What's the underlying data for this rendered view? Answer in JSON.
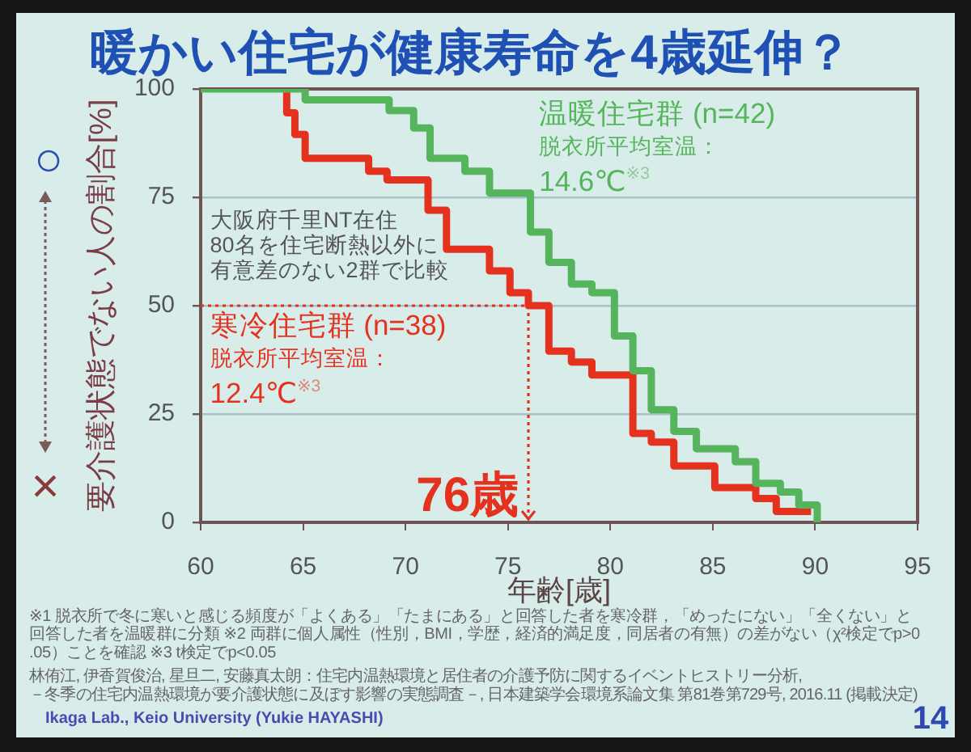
{
  "chart_data": {
    "type": "step",
    "title": "暖かい住宅が健康寿命を4歳延伸？",
    "xlabel": "年齢[歳]",
    "ylabel": "要介護状態でない人の割合[%]",
    "xlim": [
      60,
      95
    ],
    "xticks": [
      60,
      65,
      70,
      75,
      80,
      85,
      90,
      95
    ],
    "ylim": [
      0,
      100
    ],
    "yticks": [
      0,
      25,
      50,
      75,
      100
    ],
    "grid": "y",
    "legend": false,
    "marker": "none",
    "line_style": "solid",
    "series": [
      {
        "name": "温暖住宅群 (n=42)\n脱衣所平均室温：\n14.6℃$^{※3}$",
        "color": "#55b45c",
        "x": [
          60,
          65.1,
          69.2,
          70.4,
          71.2,
          72.9,
          74.1,
          76.1,
          77.0,
          78.1,
          79.1,
          80.2,
          81.1,
          82.0,
          83.1,
          84.2,
          86.1,
          87.1,
          88.3,
          89.2,
          90.1
        ],
        "values": [
          100,
          97.5,
          95,
          91,
          84,
          81,
          76,
          67,
          60,
          55,
          53,
          43,
          35,
          26,
          21,
          17,
          14,
          9,
          7,
          4,
          0
        ]
      },
      {
        "name": "寒冷住宅群 (n=38)\n脱衣所平均室温：\n12.4℃$^{※3}$",
        "color": "#e5321f",
        "x": [
          64.2,
          64.2,
          64.6,
          65.1,
          68.2,
          69.1,
          71.1,
          72.0,
          74.1,
          75.1,
          76.0,
          77.0,
          78.1,
          79.1,
          81.1,
          82.0,
          83.1,
          85.1,
          87.1,
          88.1,
          89.8
        ],
        "values": [
          100,
          94.5,
          89.5,
          84,
          81,
          79,
          72,
          63,
          58,
          53,
          50,
          39.5,
          37,
          34,
          20.5,
          18.5,
          13,
          8,
          5.5,
          2.5,
          2.5
        ]
      },
      {
        "type": "line",
        "color": "#e5321f",
        "line_style": "dotted",
        "x": [
          60,
          76,
          76
        ],
        "values": [
          50,
          50,
          0
        ]
      }
    ],
    "annotations": [
      "大阪府千里NT在住\n80名を住宅断熱以外に有意差のない2群で比較",
      {
        "text": "76歳",
        "x": 76,
        "y": 0
      },
      "○",
      "×",
      "※1 脱衣所で冬に寒いと感じる頻度が「よくある」「たまにある」と回答した者を寒冷群，「めったにない」「全くない」と回答した者を温暖群に分類 ※2 両群に個人属性（性別，BMI，学歴，経済的満足度，同居者の有無）の差がない（χ²検定でp>0.05）ことを確認 ※3 t検定でp<0.05",
      "林侑江, 伊香賀俊治, 星旦二, 安藤真太朗：住宅内温熱環境と居住者の介護予防に関するイベントヒストリー分析,\n－冬季の住宅内温熱環境が要介護状態に及ぼす影響の実態調査－, 日本建築学会環境系論文集 第81巻第729号, 2016.11 (掲載決定)",
      "Ikaga Lab., Keio University (Yukie HAYASHI)",
      "14"
    ]
  }
}
